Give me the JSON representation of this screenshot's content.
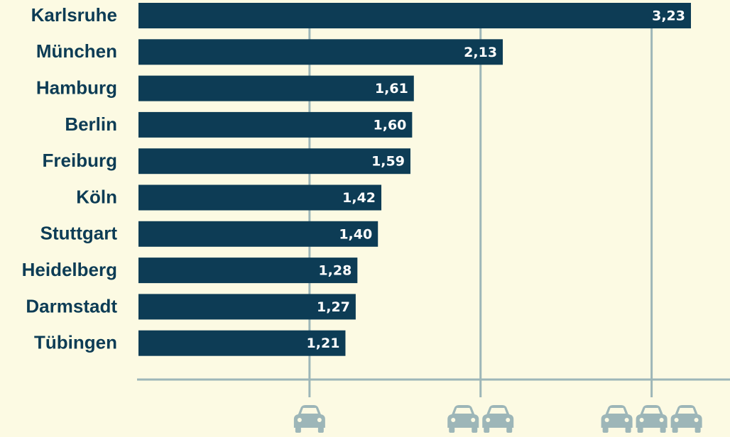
{
  "chart_data": {
    "type": "bar",
    "orientation": "horizontal",
    "categories": [
      "Karlsruhe",
      "München",
      "Hamburg",
      "Berlin",
      "Freiburg",
      "Köln",
      "Stuttgart",
      "Heidelberg",
      "Darmstadt",
      "Tübingen"
    ],
    "values": [
      3.23,
      2.13,
      1.61,
      1.6,
      1.59,
      1.42,
      1.4,
      1.28,
      1.27,
      1.21
    ],
    "value_labels": [
      "3,23",
      "2,13",
      "1,61",
      "1,60",
      "1,59",
      "1,42",
      "1,40",
      "1,28",
      "1,27",
      "1,21"
    ],
    "color": "#0d3c55",
    "xlim": [
      0,
      3.45
    ],
    "xticks": [
      1,
      2,
      3
    ],
    "grid": true
  }
}
